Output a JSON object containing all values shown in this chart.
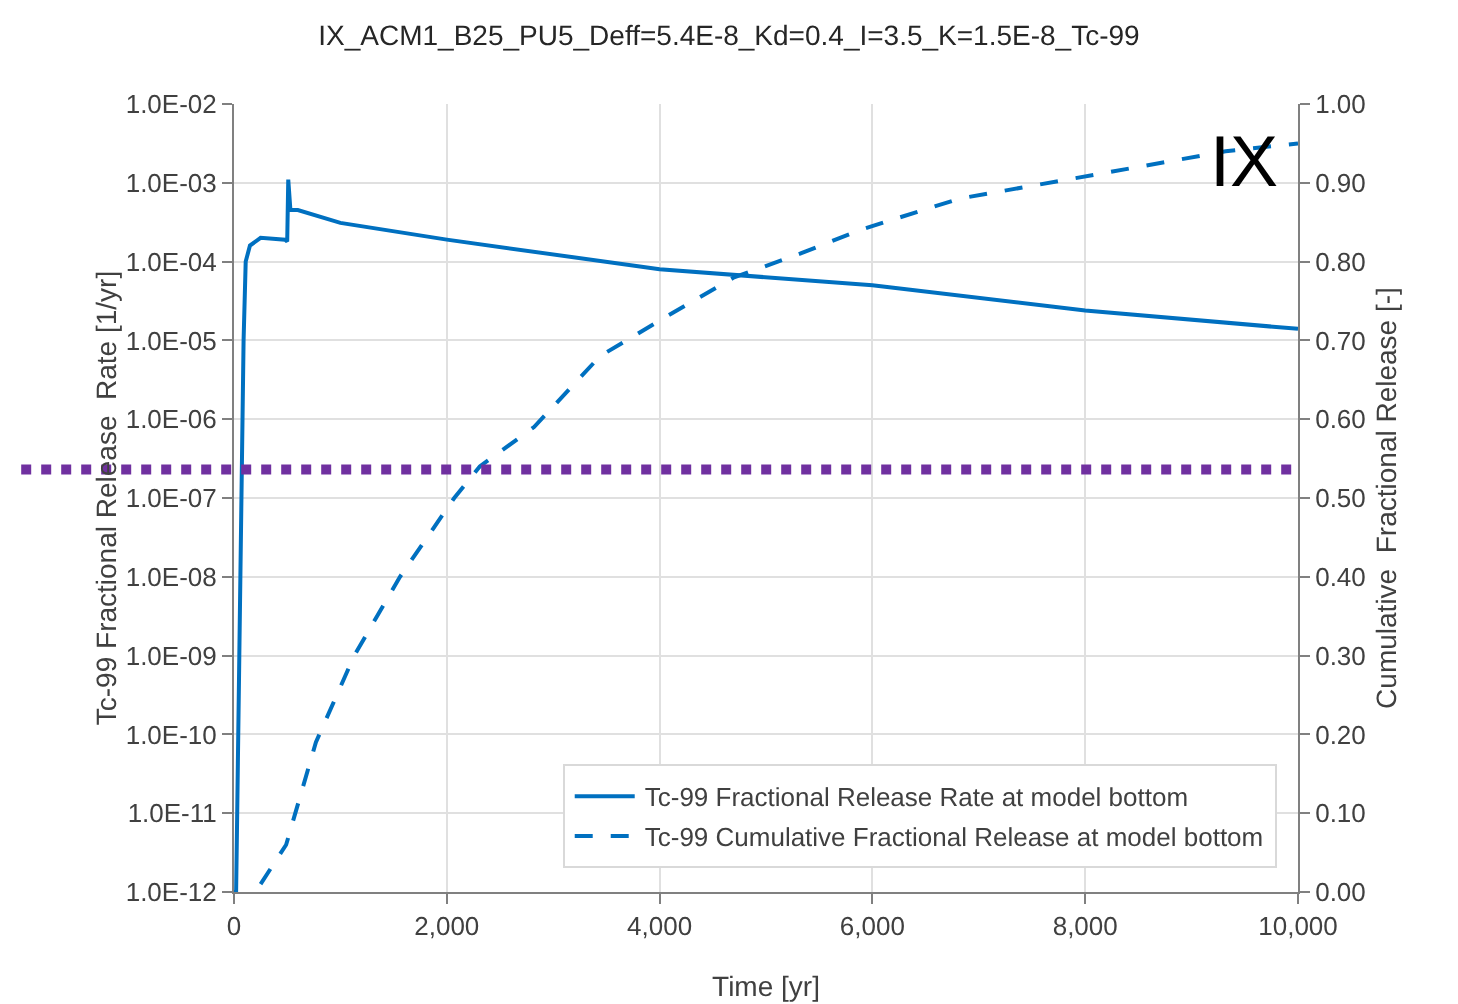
{
  "chart_data": {
    "type": "line",
    "title": "IX_ACM1_B25_PU5_Deff=5.4E-8_Kd=0.4_I=3.5_K=1.5E-8_Tc-99",
    "xlabel": "Time [yr]",
    "ylabel": "Tc-99 Fractional Release  Rate [1/yr]",
    "y2label": "Cumulative  Fractional Release [-]",
    "log": "y",
    "grid": true,
    "legend": "bottom right",
    "marker": "none",
    "xlim": [
      0,
      10000
    ],
    "xticks": [
      {
        "value": 0,
        "label": "0"
      },
      {
        "value": 2000,
        "label": "2,000"
      },
      {
        "value": 4000,
        "label": "4,000"
      },
      {
        "value": 6000,
        "label": "6,000"
      },
      {
        "value": 8000,
        "label": "8,000"
      },
      {
        "value": 10000,
        "label": "10,000"
      }
    ],
    "ylim": [
      1e-12,
      0.01
    ],
    "yticks": [
      {
        "value": 1e-12,
        "label": "1.0E-12"
      },
      {
        "value": 1e-11,
        "label": "1.0E-11"
      },
      {
        "value": 1e-10,
        "label": "1.0E-10"
      },
      {
        "value": 1e-09,
        "label": "1.0E-09"
      },
      {
        "value": 1e-08,
        "label": "1.0E-08"
      },
      {
        "value": 1e-07,
        "label": "1.0E-07"
      },
      {
        "value": 1e-06,
        "label": "1.0E-06"
      },
      {
        "value": 1e-05,
        "label": "1.0E-05"
      },
      {
        "value": 0.0001,
        "label": "1.0E-04"
      },
      {
        "value": 0.001,
        "label": "1.0E-03"
      },
      {
        "value": 0.01,
        "label": "1.0E-02"
      }
    ],
    "y2lim": [
      0,
      1
    ],
    "y2ticks": [
      {
        "value": 0,
        "label": "0.00"
      },
      {
        "value": 0.1,
        "label": "0.10"
      },
      {
        "value": 0.2,
        "label": "0.20"
      },
      {
        "value": 0.3,
        "label": "0.30"
      },
      {
        "value": 0.4,
        "label": "0.40"
      },
      {
        "value": 0.5,
        "label": "0.50"
      },
      {
        "value": 0.6,
        "label": "0.60"
      },
      {
        "value": 0.7,
        "label": "0.70"
      },
      {
        "value": 0.8,
        "label": "0.80"
      },
      {
        "value": 0.9,
        "label": "0.90"
      },
      {
        "value": 1,
        "label": "1.00"
      }
    ],
    "series": [
      {
        "name": "Tc-99 Fractional Release Rate at model bottom",
        "color": "#0070c0",
        "line_style": "solid",
        "x": [
          0,
          20,
          30,
          50,
          70,
          90,
          110,
          150,
          250,
          480,
          500,
          510,
          530,
          600,
          1000,
          2000,
          4000,
          6000,
          8000,
          10000
        ],
        "values": [
          1e-12,
          1e-12,
          1e-11,
          1e-09,
          1e-07,
          1e-05,
          0.0001,
          0.00016,
          0.0002,
          0.00019,
          0.00018,
          0.0011,
          0.00045,
          0.00045,
          0.00031,
          0.00019,
          8e-05,
          5e-05,
          2.4e-05,
          1.4e-05
        ]
      },
      {
        "name": "Tc-99 Cumulative Fractional Release at model bottom",
        "color": "#0070c0",
        "line_style": "dashed",
        "axis": "y2",
        "x": [
          250,
          490,
          770,
          1130,
          1560,
          2070,
          2310,
          2820,
          3440,
          4060,
          4700,
          5320,
          5880,
          6820,
          8080,
          9320,
          10000
        ],
        "values": [
          0.01,
          0.06,
          0.19,
          0.3,
          0.4,
          0.5,
          0.54,
          0.59,
          0.68,
          0.73,
          0.78,
          0.81,
          0.84,
          0.88,
          0.91,
          0.94,
          0.95
        ]
      }
    ],
    "ref_lines": [
      {
        "axis": "y",
        "value": 2.3e-07,
        "color": "#7030a0",
        "line_style": "dotted"
      }
    ],
    "annotations": [
      "IX"
    ]
  }
}
